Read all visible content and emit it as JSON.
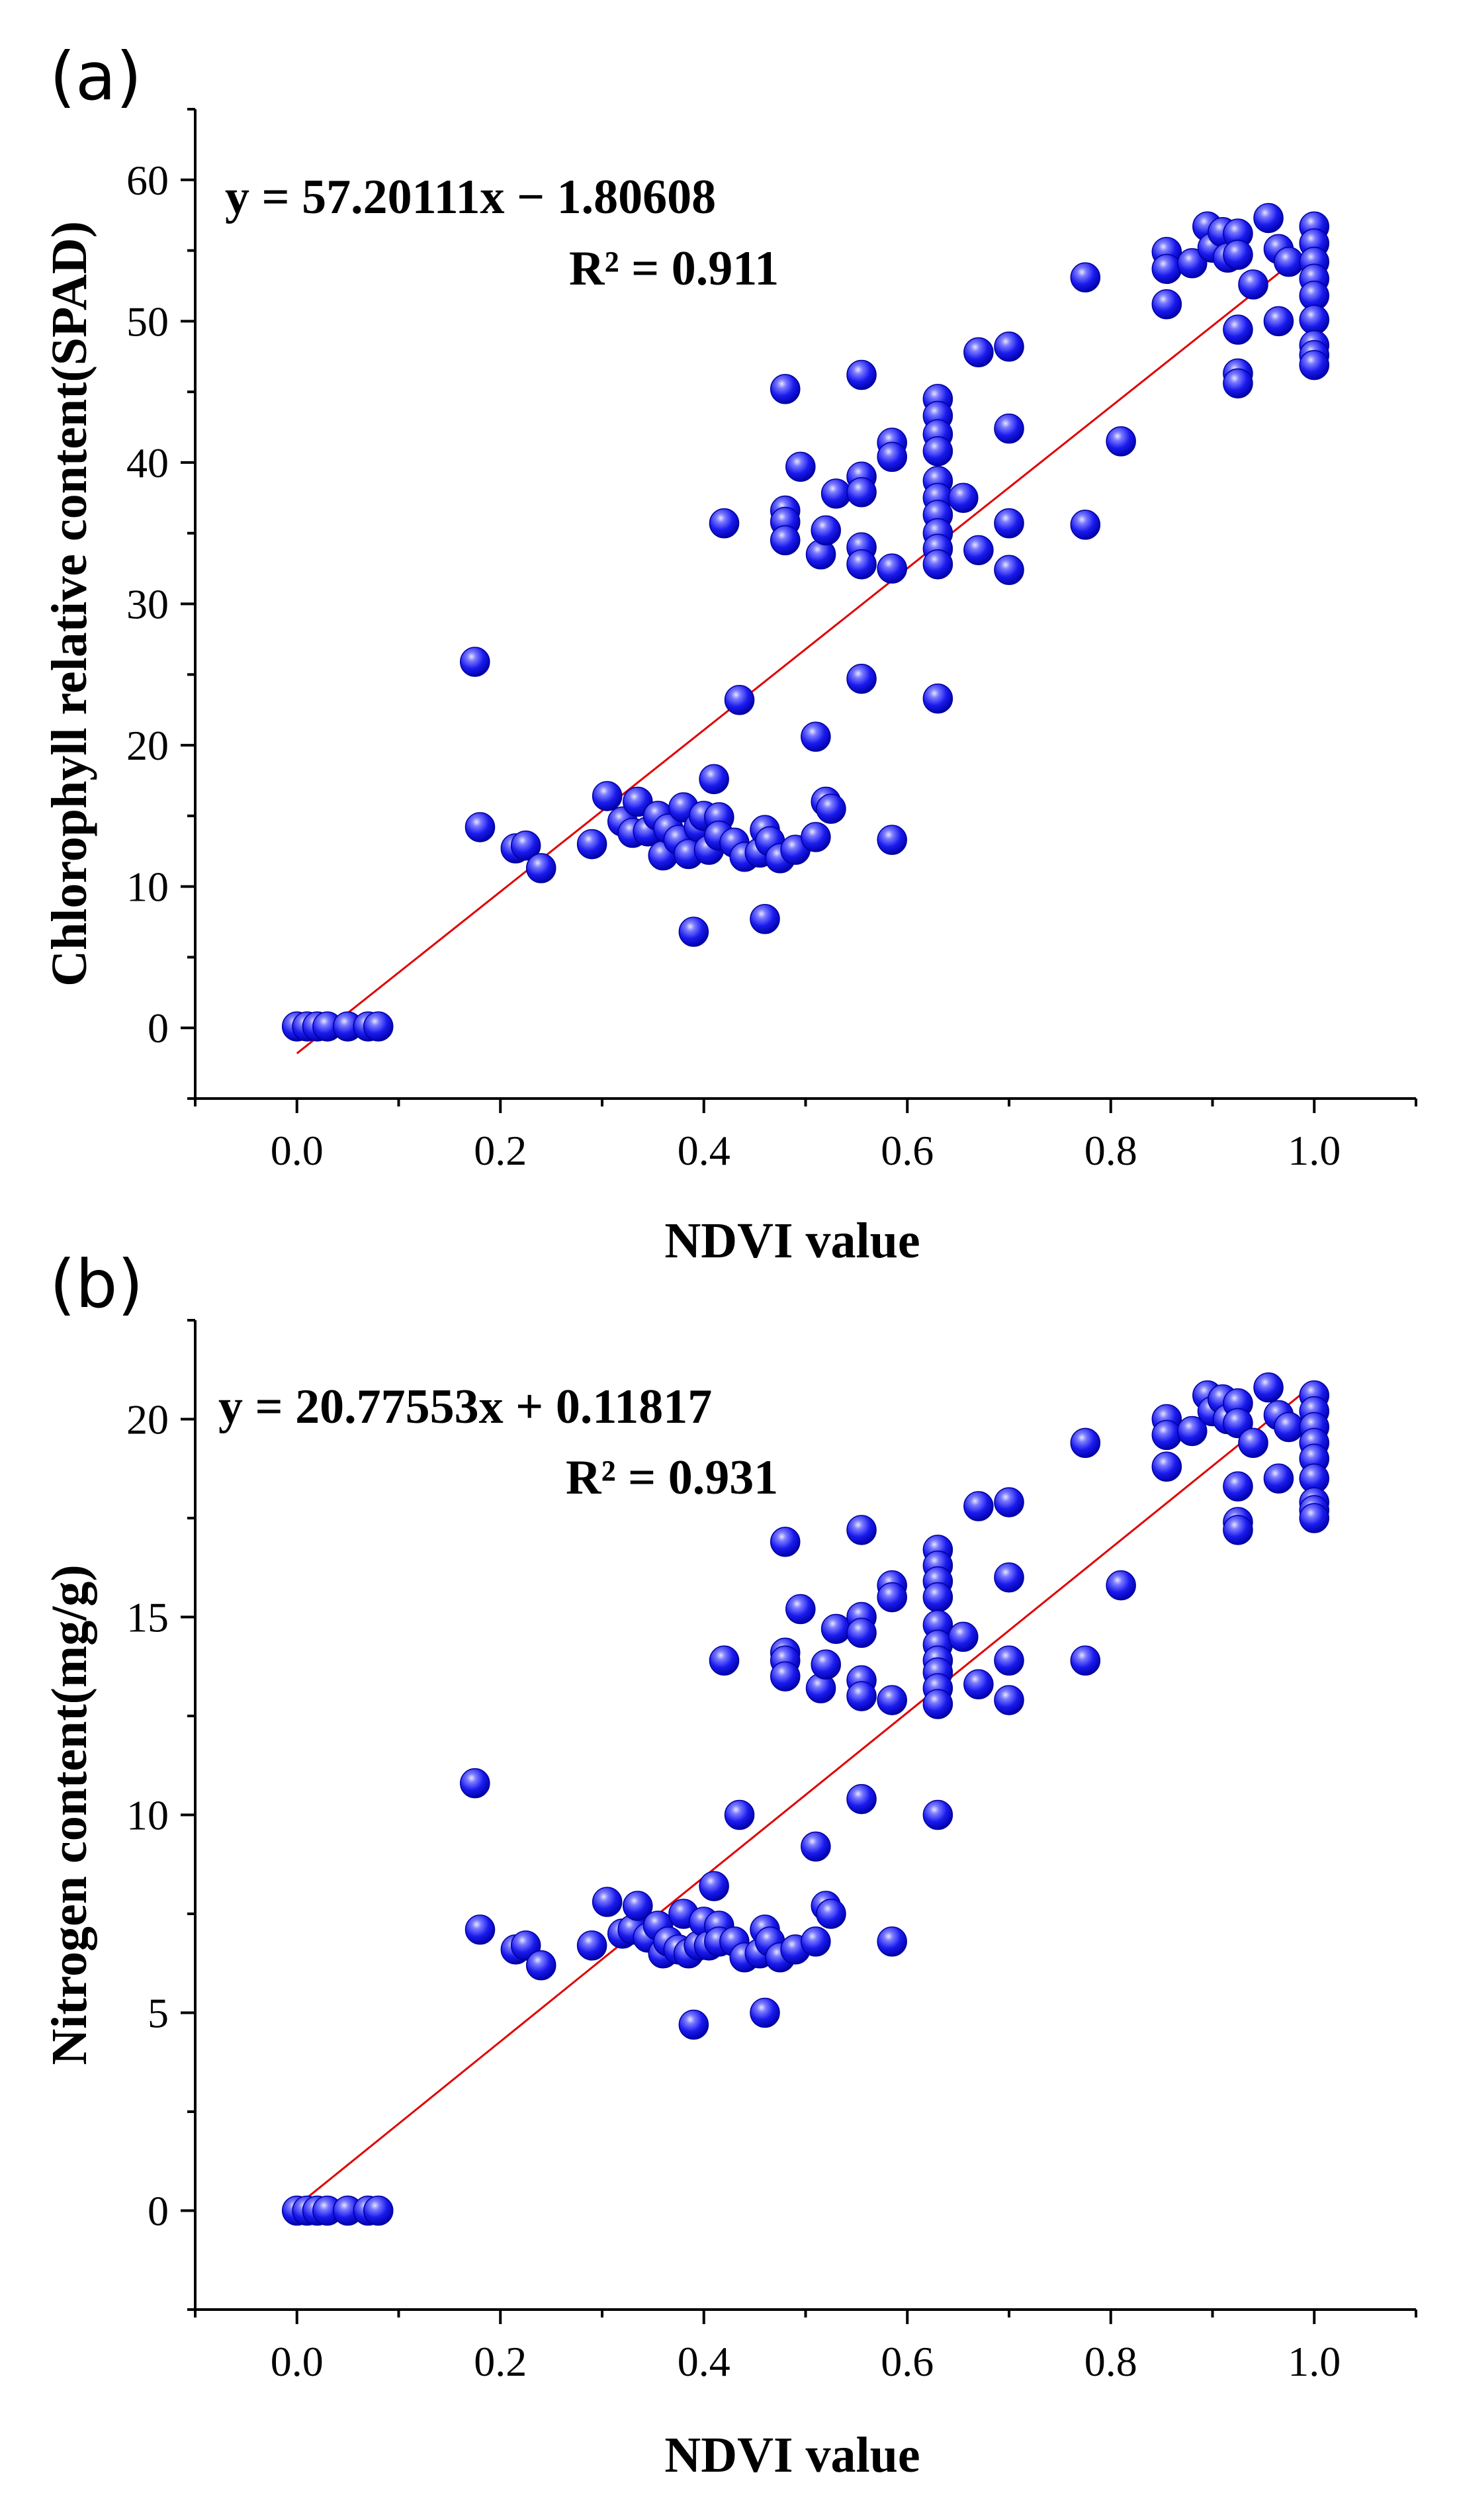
{
  "colors": {
    "point": "#1a1aee",
    "point_highlight": "#c8c8ff",
    "fit_line": "#e00000",
    "axis": "#000000"
  },
  "panels": [
    {
      "id": "a",
      "label": "(a)",
      "equation": "y = 57.20111x − 1.80608",
      "r2": "R² = 0.911"
    },
    {
      "id": "b",
      "label": "(b)",
      "equation": "y = 20.77553x + 0.11817",
      "r2": "R² = 0.931"
    }
  ],
  "chart_data": [
    {
      "type": "scatter",
      "title": "",
      "panel_label": "(a)",
      "xlabel": "NDVI value",
      "ylabel": "Chlorophyll relative content(SPAD)",
      "xlim": [
        -0.1,
        1.1
      ],
      "ylim": [
        -5,
        65
      ],
      "xticks": [
        0.0,
        0.2,
        0.4,
        0.6,
        0.8,
        1.0
      ],
      "xtick_labels": [
        "0.0",
        "0.2",
        "0.4",
        "0.6",
        "0.8",
        "1.0"
      ],
      "yticks": [
        0,
        10,
        20,
        30,
        40,
        50,
        60
      ],
      "ytick_labels": [
        "0",
        "10",
        "20",
        "30",
        "40",
        "50",
        "60"
      ],
      "fit": {
        "slope": 57.20111,
        "intercept": -1.80608,
        "x_range": [
          0.0,
          1.0
        ]
      },
      "points": [
        [
          0.0,
          0.1
        ],
        [
          0.01,
          0.1
        ],
        [
          0.02,
          0.1
        ],
        [
          0.03,
          0.1
        ],
        [
          0.05,
          0.1
        ],
        [
          0.07,
          0.1
        ],
        [
          0.08,
          0.1
        ],
        [
          0.175,
          25.9
        ],
        [
          0.18,
          14.2
        ],
        [
          0.215,
          12.7
        ],
        [
          0.225,
          12.9
        ],
        [
          0.24,
          11.3
        ],
        [
          0.29,
          13.0
        ],
        [
          0.305,
          16.4
        ],
        [
          0.32,
          14.6
        ],
        [
          0.33,
          13.8
        ],
        [
          0.335,
          16.0
        ],
        [
          0.345,
          13.9
        ],
        [
          0.355,
          15.0
        ],
        [
          0.36,
          12.2
        ],
        [
          0.365,
          14.1
        ],
        [
          0.375,
          13.3
        ],
        [
          0.38,
          15.6
        ],
        [
          0.385,
          12.3
        ],
        [
          0.39,
          6.8
        ],
        [
          0.395,
          14.2
        ],
        [
          0.4,
          15.0
        ],
        [
          0.405,
          12.6
        ],
        [
          0.41,
          17.6
        ],
        [
          0.415,
          14.9
        ],
        [
          0.415,
          13.6
        ],
        [
          0.42,
          35.7
        ],
        [
          0.43,
          13.1
        ],
        [
          0.435,
          23.2
        ],
        [
          0.44,
          12.1
        ],
        [
          0.455,
          12.4
        ],
        [
          0.46,
          14.0
        ],
        [
          0.46,
          7.7
        ],
        [
          0.465,
          13.2
        ],
        [
          0.475,
          12.0
        ],
        [
          0.48,
          45.2
        ],
        [
          0.48,
          36.6
        ],
        [
          0.48,
          35.8
        ],
        [
          0.48,
          34.5
        ],
        [
          0.49,
          12.6
        ],
        [
          0.495,
          39.7
        ],
        [
          0.51,
          20.6
        ],
        [
          0.51,
          13.5
        ],
        [
          0.515,
          33.5
        ],
        [
          0.52,
          35.2
        ],
        [
          0.52,
          16.0
        ],
        [
          0.525,
          15.5
        ],
        [
          0.53,
          37.8
        ],
        [
          0.555,
          46.2
        ],
        [
          0.555,
          39.0
        ],
        [
          0.555,
          37.9
        ],
        [
          0.555,
          34.0
        ],
        [
          0.555,
          32.8
        ],
        [
          0.555,
          24.7
        ],
        [
          0.585,
          41.4
        ],
        [
          0.585,
          40.4
        ],
        [
          0.585,
          32.5
        ],
        [
          0.585,
          13.3
        ],
        [
          0.63,
          44.5
        ],
        [
          0.63,
          43.3
        ],
        [
          0.63,
          42.0
        ],
        [
          0.63,
          40.8
        ],
        [
          0.63,
          38.7
        ],
        [
          0.63,
          37.5
        ],
        [
          0.63,
          36.3
        ],
        [
          0.63,
          35.0
        ],
        [
          0.63,
          33.9
        ],
        [
          0.63,
          32.8
        ],
        [
          0.63,
          23.3
        ],
        [
          0.655,
          37.5
        ],
        [
          0.67,
          47.8
        ],
        [
          0.67,
          33.8
        ],
        [
          0.7,
          48.2
        ],
        [
          0.7,
          42.4
        ],
        [
          0.7,
          35.7
        ],
        [
          0.7,
          32.4
        ],
        [
          0.775,
          53.1
        ],
        [
          0.775,
          35.6
        ],
        [
          0.81,
          41.5
        ],
        [
          0.855,
          54.9
        ],
        [
          0.855,
          53.7
        ],
        [
          0.855,
          51.2
        ],
        [
          0.88,
          54.1
        ],
        [
          0.895,
          56.7
        ],
        [
          0.9,
          55.2
        ],
        [
          0.91,
          56.3
        ],
        [
          0.915,
          54.5
        ],
        [
          0.925,
          56.2
        ],
        [
          0.925,
          54.7
        ],
        [
          0.925,
          49.4
        ],
        [
          0.925,
          46.3
        ],
        [
          0.925,
          45.6
        ],
        [
          0.94,
          52.6
        ],
        [
          0.955,
          57.3
        ],
        [
          0.965,
          55.1
        ],
        [
          0.965,
          50.0
        ],
        [
          0.975,
          54.2
        ],
        [
          1.0,
          56.7
        ],
        [
          1.0,
          55.5
        ],
        [
          1.0,
          54.2
        ],
        [
          1.0,
          53.0
        ],
        [
          1.0,
          51.8
        ],
        [
          1.0,
          50.1
        ],
        [
          1.0,
          48.3
        ],
        [
          1.0,
          47.6
        ],
        [
          1.0,
          46.9
        ]
      ]
    },
    {
      "type": "scatter",
      "title": "",
      "panel_label": "(b)",
      "xlabel": "NDVI value",
      "ylabel": "Nitrogen content(mg/g)",
      "xlim": [
        -0.1,
        1.1
      ],
      "ylim": [
        -2.5,
        22.5
      ],
      "xticks": [
        0.0,
        0.2,
        0.4,
        0.6,
        0.8,
        1.0
      ],
      "xtick_labels": [
        "0.0",
        "0.2",
        "0.4",
        "0.6",
        "0.8",
        "1.0"
      ],
      "yticks": [
        0,
        5,
        10,
        15,
        20
      ],
      "ytick_labels": [
        "0",
        "5",
        "10",
        "15",
        "20"
      ],
      "fit": {
        "slope": 20.77553,
        "intercept": 0.11817,
        "x_range": [
          0.0,
          1.0
        ]
      },
      "points": [
        [
          0.0,
          0.0
        ],
        [
          0.01,
          0.0
        ],
        [
          0.02,
          0.0
        ],
        [
          0.03,
          0.0
        ],
        [
          0.05,
          0.0
        ],
        [
          0.07,
          0.0
        ],
        [
          0.08,
          0.0
        ],
        [
          0.175,
          10.8
        ],
        [
          0.18,
          7.1
        ],
        [
          0.215,
          6.6
        ],
        [
          0.225,
          6.7
        ],
        [
          0.24,
          6.2
        ],
        [
          0.29,
          6.7
        ],
        [
          0.305,
          7.8
        ],
        [
          0.32,
          7.0
        ],
        [
          0.33,
          7.1
        ],
        [
          0.335,
          7.7
        ],
        [
          0.345,
          6.9
        ],
        [
          0.355,
          7.2
        ],
        [
          0.36,
          6.5
        ],
        [
          0.365,
          6.8
        ],
        [
          0.375,
          6.6
        ],
        [
          0.38,
          7.5
        ],
        [
          0.385,
          6.5
        ],
        [
          0.39,
          4.7
        ],
        [
          0.395,
          6.7
        ],
        [
          0.4,
          7.3
        ],
        [
          0.405,
          6.7
        ],
        [
          0.41,
          8.2
        ],
        [
          0.415,
          7.2
        ],
        [
          0.415,
          6.8
        ],
        [
          0.42,
          13.9
        ],
        [
          0.43,
          6.8
        ],
        [
          0.435,
          10.0
        ],
        [
          0.44,
          6.4
        ],
        [
          0.455,
          6.5
        ],
        [
          0.46,
          7.1
        ],
        [
          0.46,
          5.0
        ],
        [
          0.465,
          6.8
        ],
        [
          0.475,
          6.4
        ],
        [
          0.48,
          16.9
        ],
        [
          0.48,
          14.1
        ],
        [
          0.48,
          13.9
        ],
        [
          0.48,
          13.5
        ],
        [
          0.49,
          6.6
        ],
        [
          0.495,
          15.2
        ],
        [
          0.51,
          9.2
        ],
        [
          0.51,
          6.8
        ],
        [
          0.515,
          13.2
        ],
        [
          0.52,
          13.8
        ],
        [
          0.52,
          7.7
        ],
        [
          0.525,
          7.5
        ],
        [
          0.53,
          14.7
        ],
        [
          0.555,
          17.2
        ],
        [
          0.555,
          15.0
        ],
        [
          0.555,
          14.6
        ],
        [
          0.555,
          13.4
        ],
        [
          0.555,
          13.0
        ],
        [
          0.555,
          10.4
        ],
        [
          0.585,
          15.8
        ],
        [
          0.585,
          15.5
        ],
        [
          0.585,
          12.9
        ],
        [
          0.585,
          6.8
        ],
        [
          0.63,
          16.7
        ],
        [
          0.63,
          16.3
        ],
        [
          0.63,
          15.9
        ],
        [
          0.63,
          15.5
        ],
        [
          0.63,
          14.8
        ],
        [
          0.63,
          14.3
        ],
        [
          0.63,
          13.9
        ],
        [
          0.63,
          13.6
        ],
        [
          0.63,
          13.2
        ],
        [
          0.63,
          12.8
        ],
        [
          0.63,
          10.0
        ],
        [
          0.655,
          14.5
        ],
        [
          0.67,
          17.8
        ],
        [
          0.67,
          13.3
        ],
        [
          0.7,
          17.9
        ],
        [
          0.7,
          16.0
        ],
        [
          0.7,
          13.9
        ],
        [
          0.7,
          12.9
        ],
        [
          0.775,
          19.4
        ],
        [
          0.775,
          13.9
        ],
        [
          0.81,
          15.8
        ],
        [
          0.855,
          20.0
        ],
        [
          0.855,
          19.6
        ],
        [
          0.855,
          18.8
        ],
        [
          0.88,
          19.7
        ],
        [
          0.895,
          20.6
        ],
        [
          0.9,
          20.2
        ],
        [
          0.91,
          20.5
        ],
        [
          0.915,
          20.0
        ],
        [
          0.925,
          20.4
        ],
        [
          0.925,
          19.9
        ],
        [
          0.925,
          18.3
        ],
        [
          0.925,
          17.4
        ],
        [
          0.925,
          17.2
        ],
        [
          0.94,
          19.4
        ],
        [
          0.955,
          20.8
        ],
        [
          0.965,
          20.1
        ],
        [
          0.965,
          18.5
        ],
        [
          0.975,
          19.8
        ],
        [
          1.0,
          20.6
        ],
        [
          1.0,
          20.2
        ],
        [
          1.0,
          19.8
        ],
        [
          1.0,
          19.4
        ],
        [
          1.0,
          19.0
        ],
        [
          1.0,
          18.5
        ],
        [
          1.0,
          17.9
        ],
        [
          1.0,
          17.7
        ],
        [
          1.0,
          17.5
        ]
      ]
    }
  ]
}
